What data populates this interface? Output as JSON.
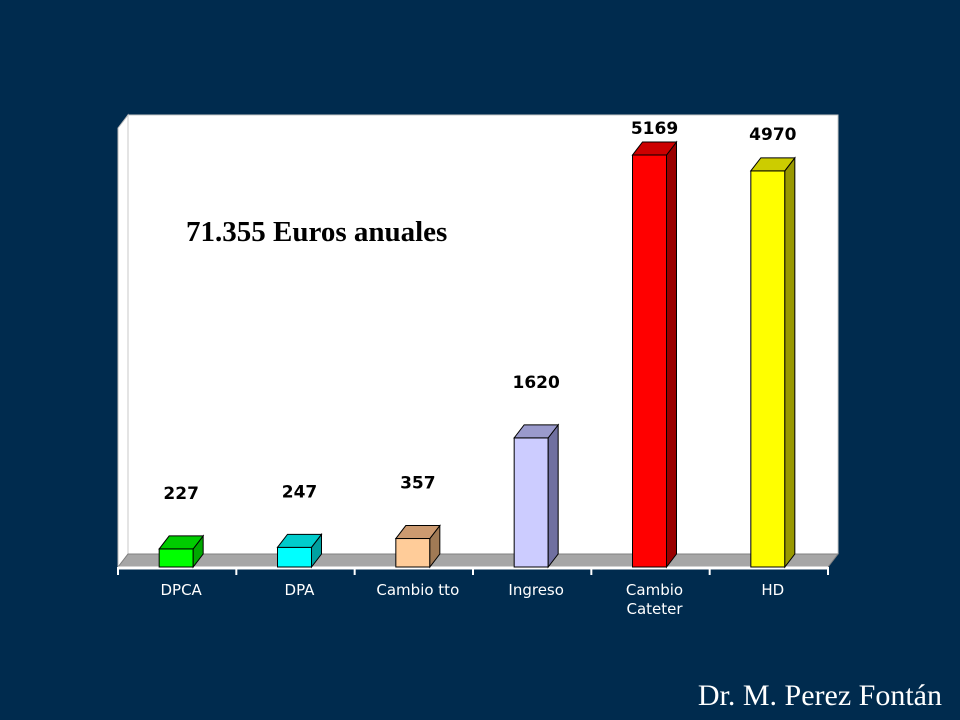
{
  "chart_data": {
    "type": "bar",
    "categories": [
      "DPCA",
      "DPA",
      "Cambio tto",
      "Ingreso",
      "Cambio\nCateter",
      "HD"
    ],
    "values": [
      227,
      247,
      357,
      1620,
      5169,
      4970
    ],
    "data_labels": [
      "227",
      "247",
      "357",
      "1620",
      "5169",
      "4970"
    ],
    "title": "",
    "xlabel": "",
    "ylabel": "",
    "ylim": [
      0,
      5600
    ],
    "grid": false,
    "legend": "none",
    "bar_colors": [
      {
        "front": "#00ff00",
        "side": "#00a800",
        "top": "#00cc00"
      },
      {
        "front": "#00ffff",
        "side": "#00a0a0",
        "top": "#00cccc"
      },
      {
        "front": "#ffcc99",
        "side": "#a07a55",
        "top": "#cc9a70"
      },
      {
        "front": "#ccccff",
        "side": "#7070a0",
        "top": "#9a9acc"
      },
      {
        "front": "#ff0000",
        "side": "#990000",
        "top": "#cc0000"
      },
      {
        "front": "#ffff00",
        "side": "#999900",
        "top": "#cccc00"
      }
    ],
    "plot_background": "#ffffff",
    "floor_color": "#a6a6a6"
  },
  "annotation": "71.355 Euros anuales",
  "author": "Dr. M. Perez Fontán",
  "colors": {
    "background": "#002b4e",
    "text": "#ffffff",
    "axis": "#ffffff"
  }
}
